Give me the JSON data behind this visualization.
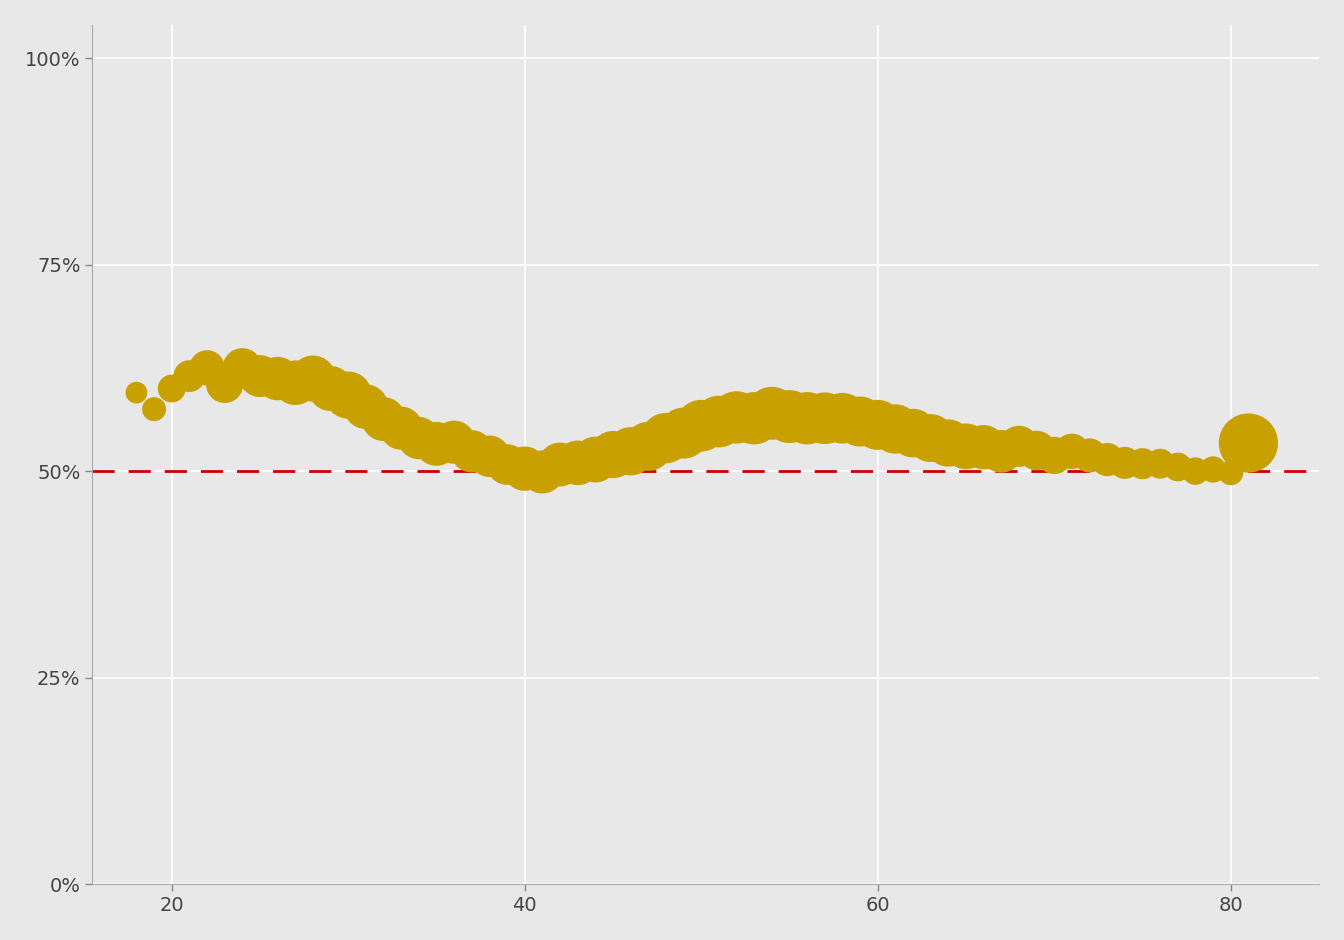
{
  "ages": [
    18,
    19,
    20,
    21,
    22,
    23,
    24,
    25,
    26,
    27,
    28,
    29,
    30,
    31,
    32,
    33,
    34,
    35,
    36,
    37,
    38,
    39,
    40,
    41,
    42,
    43,
    44,
    45,
    46,
    47,
    48,
    49,
    50,
    51,
    52,
    53,
    54,
    55,
    56,
    57,
    58,
    59,
    60,
    61,
    62,
    63,
    64,
    65,
    66,
    67,
    68,
    69,
    70,
    71,
    72,
    73,
    74,
    75,
    76,
    77,
    78,
    79,
    80,
    81
  ],
  "opposition": [
    0.595,
    0.575,
    0.6,
    0.615,
    0.625,
    0.605,
    0.625,
    0.615,
    0.612,
    0.607,
    0.612,
    0.6,
    0.592,
    0.578,
    0.563,
    0.552,
    0.54,
    0.533,
    0.535,
    0.524,
    0.518,
    0.508,
    0.503,
    0.499,
    0.508,
    0.51,
    0.514,
    0.52,
    0.524,
    0.53,
    0.54,
    0.546,
    0.555,
    0.56,
    0.565,
    0.564,
    0.57,
    0.566,
    0.564,
    0.564,
    0.564,
    0.56,
    0.556,
    0.551,
    0.546,
    0.54,
    0.534,
    0.53,
    0.529,
    0.524,
    0.53,
    0.525,
    0.519,
    0.524,
    0.519,
    0.514,
    0.51,
    0.509,
    0.509,
    0.505,
    0.5,
    0.502,
    0.498,
    0.534
  ],
  "counts": [
    70,
    85,
    115,
    150,
    185,
    205,
    230,
    260,
    280,
    295,
    315,
    300,
    330,
    295,
    285,
    275,
    265,
    285,
    275,
    265,
    255,
    245,
    290,
    275,
    285,
    295,
    310,
    330,
    345,
    355,
    375,
    385,
    395,
    395,
    405,
    405,
    415,
    415,
    405,
    395,
    380,
    370,
    370,
    360,
    350,
    340,
    330,
    310,
    290,
    270,
    250,
    230,
    205,
    185,
    172,
    163,
    152,
    143,
    132,
    122,
    112,
    102,
    92,
    520
  ],
  "point_color": "#C8A000",
  "dashed_line_color": "#CC0000",
  "background_color": "#E8E8E8",
  "grid_color": "#FFFFFF",
  "ylim": [
    0.0,
    1.04
  ],
  "xlim": [
    15.5,
    85
  ],
  "yticks": [
    0.0,
    0.25,
    0.5,
    0.75,
    1.0
  ],
  "ytick_labels": [
    "0%",
    "25%",
    "50%",
    "75%",
    "100%"
  ],
  "xticks": [
    20,
    40,
    60,
    80
  ],
  "scale_factor": 3.5
}
